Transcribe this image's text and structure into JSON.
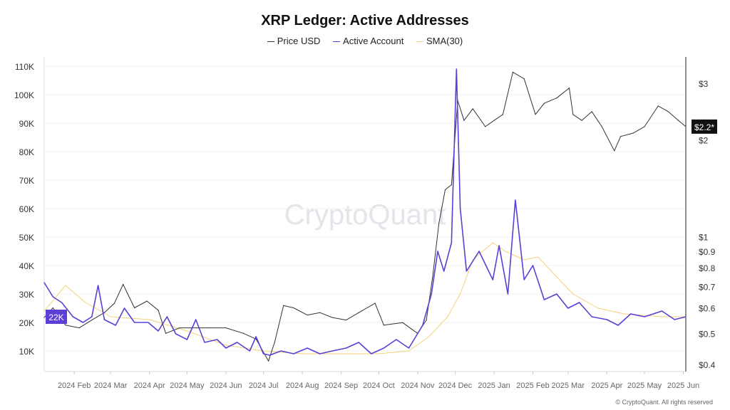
{
  "chart_data": {
    "type": "line",
    "title": "XRP Ledger: Active Addresses",
    "legend_position": "top",
    "grid": true,
    "watermark": "CryptoQuant",
    "footer": "© CryptoQuant. All rights reserved",
    "x_ticks": [
      "2024 Feb",
      "2024 Mar",
      "2024 Apr",
      "2024 May",
      "2024 Jun",
      "2024 Jul",
      "2024 Aug",
      "2024 Sep",
      "2024 Oct",
      "2024 Nov",
      "2024 Dec",
      "2025 Jan",
      "2025 Feb",
      "2025 Mar",
      "2025 Apr",
      "2025 May",
      "2025 Jun"
    ],
    "x_tick_dates": [
      "2024-02-01",
      "2024-03-01",
      "2024-04-01",
      "2024-05-01",
      "2024-06-01",
      "2024-07-01",
      "2024-08-01",
      "2024-09-01",
      "2024-10-01",
      "2024-11-01",
      "2024-12-01",
      "2025-01-01",
      "2025-02-01",
      "2025-03-01",
      "2025-04-01",
      "2025-05-01",
      "2025-06-01"
    ],
    "xlim": [
      "2024-01-08",
      "2025-06-03"
    ],
    "left_axis": {
      "ylim": [
        0,
        115000
      ],
      "ticks": [
        "10K",
        "20K",
        "30K",
        "40K",
        "50K",
        "60K",
        "70K",
        "80K",
        "90K",
        "100K",
        "110K"
      ],
      "tick_values": [
        10000,
        20000,
        30000,
        40000,
        50000,
        60000,
        70000,
        80000,
        90000,
        100000,
        110000
      ],
      "current_label": "22K",
      "current_value": 22000
    },
    "right_axis": {
      "scale": "log",
      "ylim": [
        0.4,
        3.6
      ],
      "ticks": [
        "$0.4",
        "$0.5",
        "$0.6",
        "$0.7",
        "$0.8",
        "$0.9",
        "$1",
        "$2",
        "$3"
      ],
      "tick_values": [
        0.4,
        0.5,
        0.6,
        0.7,
        0.8,
        0.9,
        1,
        2,
        3
      ],
      "current_label": "$2.2*",
      "current_value": 2.2
    },
    "series": [
      {
        "name": "Price USD",
        "axis": "right",
        "color": "#333333",
        "x": [
          "2024-01-08",
          "2024-01-15",
          "2024-01-25",
          "2024-02-05",
          "2024-02-15",
          "2024-02-25",
          "2024-03-04",
          "2024-03-11",
          "2024-03-20",
          "2024-03-30",
          "2024-04-08",
          "2024-04-14",
          "2024-04-25",
          "2024-05-10",
          "2024-05-20",
          "2024-06-01",
          "2024-06-15",
          "2024-06-25",
          "2024-07-05",
          "2024-07-10",
          "2024-07-17",
          "2024-07-25",
          "2024-08-05",
          "2024-08-15",
          "2024-08-25",
          "2024-09-05",
          "2024-09-15",
          "2024-09-28",
          "2024-10-05",
          "2024-10-20",
          "2024-11-01",
          "2024-11-08",
          "2024-11-13",
          "2024-11-18",
          "2024-11-23",
          "2024-11-28",
          "2024-12-03",
          "2024-12-08",
          "2024-12-15",
          "2024-12-25",
          "2025-01-01",
          "2025-01-08",
          "2025-01-16",
          "2025-01-25",
          "2025-02-03",
          "2025-02-10",
          "2025-02-20",
          "2025-03-02",
          "2025-03-05",
          "2025-03-12",
          "2025-03-20",
          "2025-03-28",
          "2025-04-07",
          "2025-04-12",
          "2025-04-22",
          "2025-05-01",
          "2025-05-12",
          "2025-05-20",
          "2025-05-28",
          "2025-06-03"
        ],
        "values": [
          0.56,
          0.6,
          0.53,
          0.52,
          0.55,
          0.58,
          0.62,
          0.71,
          0.6,
          0.63,
          0.59,
          0.5,
          0.52,
          0.52,
          0.52,
          0.52,
          0.5,
          0.48,
          0.41,
          0.47,
          0.61,
          0.6,
          0.57,
          0.58,
          0.56,
          0.55,
          0.58,
          0.62,
          0.53,
          0.54,
          0.5,
          0.55,
          0.75,
          1.1,
          1.4,
          1.45,
          2.65,
          2.3,
          2.5,
          2.2,
          2.3,
          2.4,
          3.25,
          3.1,
          2.4,
          2.6,
          2.7,
          2.9,
          2.4,
          2.3,
          2.45,
          2.2,
          1.85,
          2.05,
          2.1,
          2.2,
          2.55,
          2.45,
          2.3,
          2.2
        ]
      },
      {
        "name": "Active Account",
        "axis": "left",
        "color": "#5b3fd6",
        "x": [
          "2024-01-08",
          "2024-01-15",
          "2024-01-22",
          "2024-01-31",
          "2024-02-08",
          "2024-02-15",
          "2024-02-20",
          "2024-02-25",
          "2024-03-05",
          "2024-03-12",
          "2024-03-20",
          "2024-03-31",
          "2024-04-08",
          "2024-04-15",
          "2024-04-22",
          "2024-05-01",
          "2024-05-08",
          "2024-05-15",
          "2024-05-25",
          "2024-06-01",
          "2024-06-10",
          "2024-06-20",
          "2024-06-25",
          "2024-07-01",
          "2024-07-06",
          "2024-07-15",
          "2024-07-25",
          "2024-08-05",
          "2024-08-15",
          "2024-08-25",
          "2024-09-05",
          "2024-09-15",
          "2024-09-25",
          "2024-10-05",
          "2024-10-15",
          "2024-10-25",
          "2024-11-05",
          "2024-11-12",
          "2024-11-17",
          "2024-11-22",
          "2024-11-28",
          "2024-12-02",
          "2024-12-05",
          "2024-12-10",
          "2024-12-20",
          "2024-12-31",
          "2025-01-05",
          "2025-01-12",
          "2025-01-18",
          "2025-01-25",
          "2025-02-01",
          "2025-02-10",
          "2025-02-20",
          "2025-03-01",
          "2025-03-10",
          "2025-03-20",
          "2025-04-01",
          "2025-04-10",
          "2025-04-20",
          "2025-05-01",
          "2025-05-15",
          "2025-05-25",
          "2025-06-03"
        ],
        "values": [
          34000,
          29000,
          27000,
          22000,
          20000,
          22000,
          33000,
          21000,
          19000,
          25000,
          20000,
          20000,
          17000,
          22000,
          16000,
          14000,
          21000,
          13000,
          14000,
          11000,
          13000,
          10000,
          15000,
          9000,
          8500,
          10000,
          9000,
          11000,
          9000,
          10000,
          11000,
          13000,
          9000,
          11000,
          14000,
          11000,
          19000,
          30000,
          45000,
          38000,
          48000,
          109000,
          60000,
          38000,
          45000,
          35000,
          47000,
          30000,
          63000,
          35000,
          40000,
          28000,
          30000,
          25000,
          27000,
          22000,
          21000,
          19000,
          23000,
          22000,
          24000,
          21000,
          22000
        ]
      },
      {
        "name": "SMA(30)",
        "axis": "left",
        "color": "#f2d27a",
        "x": [
          "2024-01-08",
          "2024-01-25",
          "2024-02-10",
          "2024-03-01",
          "2024-04-01",
          "2024-05-01",
          "2024-06-01",
          "2024-07-01",
          "2024-08-01",
          "2024-09-01",
          "2024-10-01",
          "2024-10-25",
          "2024-11-10",
          "2024-11-25",
          "2024-12-05",
          "2024-12-15",
          "2024-12-31",
          "2025-01-10",
          "2025-01-25",
          "2025-02-05",
          "2025-02-20",
          "2025-03-05",
          "2025-03-25",
          "2025-04-15",
          "2025-05-15",
          "2025-06-03"
        ],
        "values": [
          24000,
          33000,
          27000,
          22000,
          21000,
          17000,
          12000,
          10000,
          9000,
          9000,
          9000,
          10000,
          15000,
          22000,
          30000,
          42000,
          48000,
          45000,
          42000,
          43000,
          36000,
          30000,
          25000,
          23000,
          22000,
          22000
        ]
      }
    ]
  }
}
